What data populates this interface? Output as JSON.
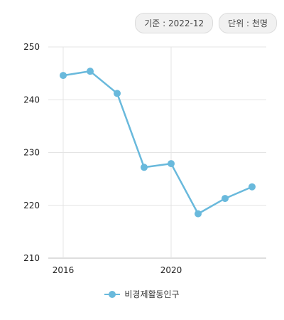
{
  "header": {
    "base_date_badge": "기준 : 2022-12",
    "unit_badge": "단위 : 천명"
  },
  "chart_data": {
    "type": "line",
    "title": "",
    "xlabel": "",
    "ylabel": "",
    "x": [
      2016,
      2017,
      2018,
      2019,
      2020,
      2021,
      2022,
      2023
    ],
    "x_tick_labels": [
      "2016",
      "2020"
    ],
    "y_ticks": [
      210,
      220,
      230,
      240,
      250
    ],
    "ylim": [
      210,
      250
    ],
    "grid": true,
    "legend_position": "bottom",
    "series": [
      {
        "name": "비경제활동인구",
        "color": "#69b9dc",
        "values": [
          244.6,
          245.4,
          241.2,
          227.2,
          227.9,
          218.4,
          221.3,
          223.5
        ]
      }
    ]
  }
}
